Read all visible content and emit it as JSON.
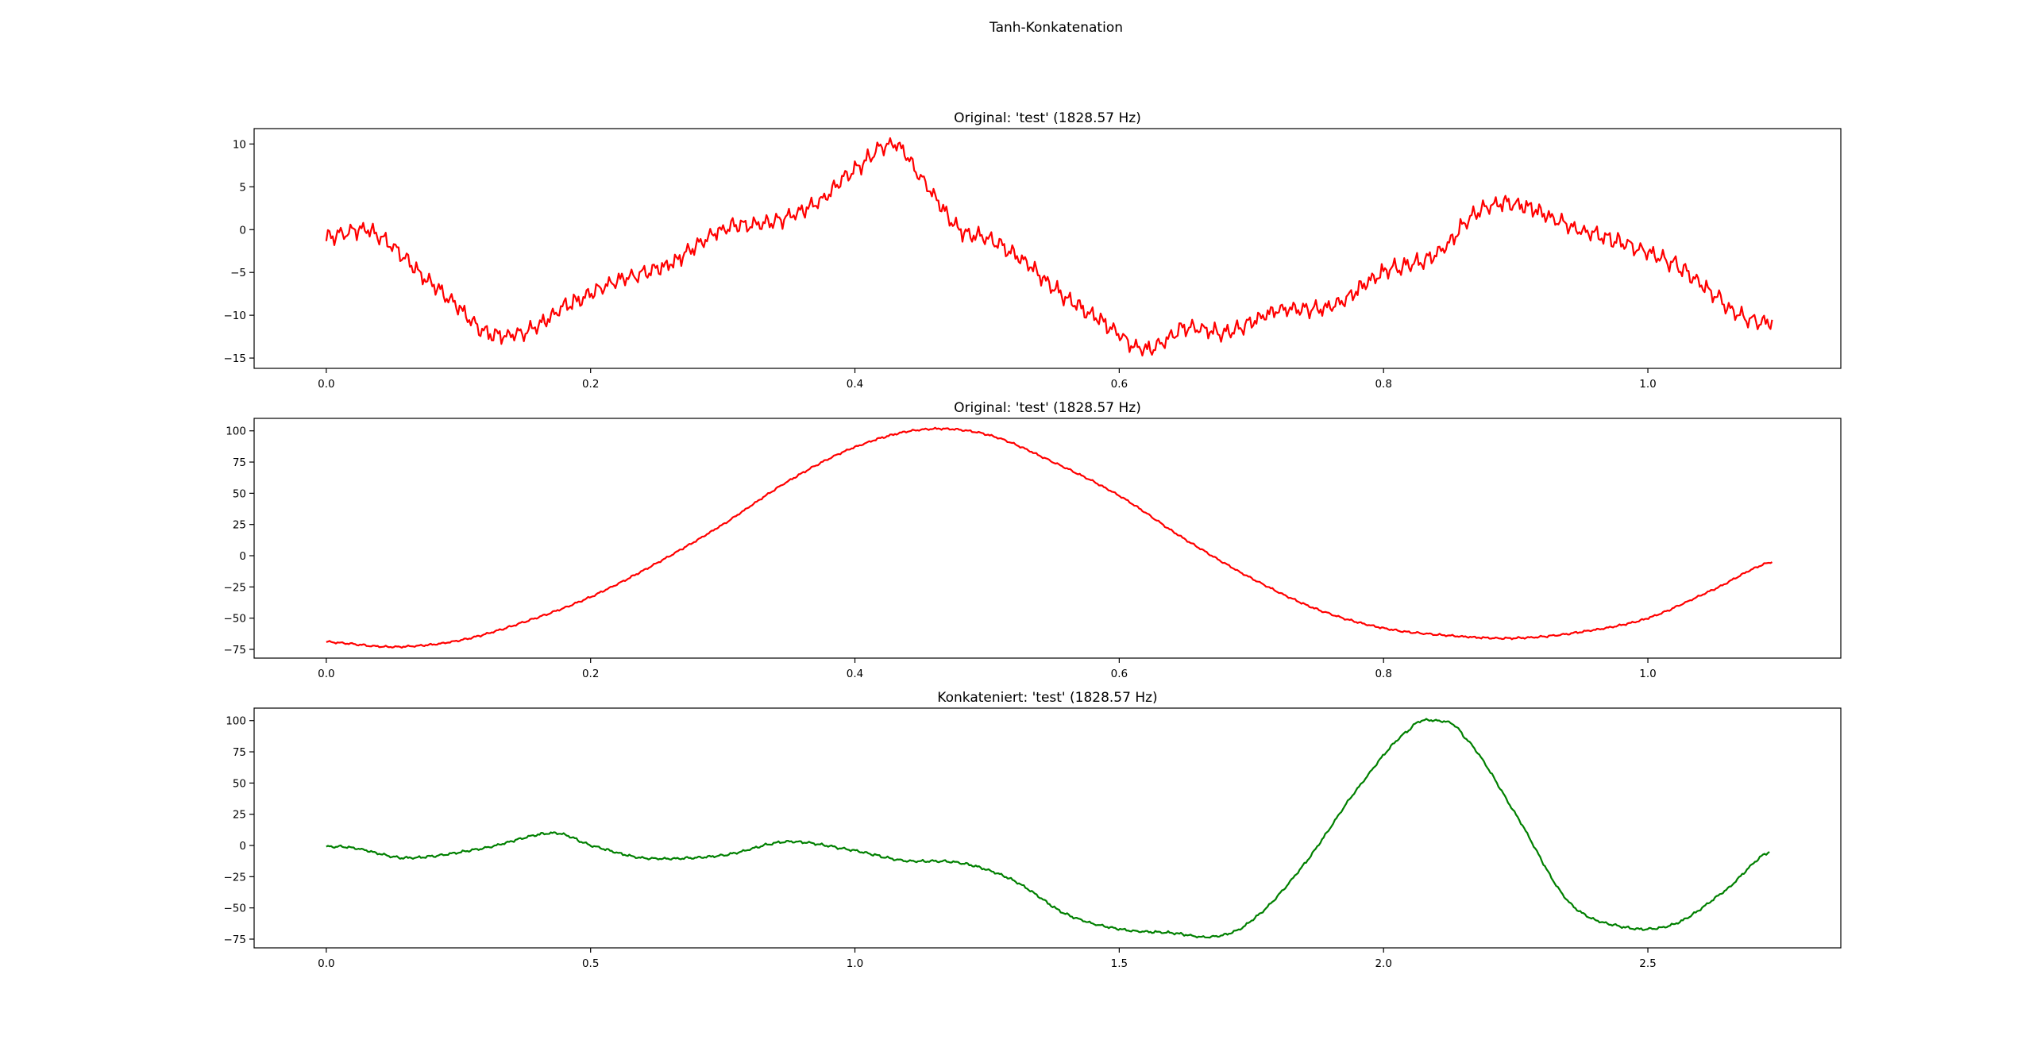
{
  "figure_title": "Tanh-Konkatenation",
  "chart_data": [
    {
      "type": "line",
      "title": "Original: 'test' (1828.57 Hz)",
      "xlabel": "",
      "ylabel": "",
      "xlim": [
        -0.0546,
        1.146
      ],
      "ylim": [
        -16.2,
        11.8
      ],
      "xticks": [
        0.0,
        0.2,
        0.4,
        0.6,
        0.8,
        1.0
      ],
      "xtick_labels": [
        "0.0",
        "0.2",
        "0.4",
        "0.6",
        "0.8",
        "1.0"
      ],
      "yticks": [
        10,
        5,
        0,
        -5,
        -10,
        -15
      ],
      "ytick_labels": [
        "10",
        "5",
        "0",
        "−5",
        "−10",
        "−15"
      ],
      "grid": false,
      "series": [
        {
          "color": "#ff0000",
          "noise": 1.0,
          "x": [
            0.0,
            0.03,
            0.05,
            0.07,
            0.1,
            0.12,
            0.15,
            0.18,
            0.22,
            0.26,
            0.3,
            0.34,
            0.37,
            0.4,
            0.43,
            0.45,
            0.48,
            0.5,
            0.53,
            0.56,
            0.59,
            0.62,
            0.65,
            0.68,
            0.72,
            0.76,
            0.8,
            0.84,
            0.87,
            0.9,
            0.94,
            0.98,
            1.02,
            1.05,
            1.07,
            1.094
          ],
          "y": [
            -1,
            0,
            -2,
            -5,
            -9,
            -12,
            -12,
            -9,
            -6,
            -4,
            0,
            1,
            3,
            7,
            10,
            6,
            0,
            -1,
            -4,
            -8,
            -11,
            -14,
            -11.5,
            -12,
            -9.5,
            -9,
            -5,
            -3,
            2,
            3,
            0.5,
            -1.5,
            -4,
            -7.5,
            -10,
            -11
          ]
        }
      ]
    },
    {
      "type": "line",
      "title": "Original: 'test' (1828.57 Hz)",
      "xlabel": "",
      "ylabel": "",
      "xlim": [
        -0.0546,
        1.146
      ],
      "ylim": [
        -82,
        110
      ],
      "xticks": [
        0.0,
        0.2,
        0.4,
        0.6,
        0.8,
        1.0
      ],
      "xtick_labels": [
        "0.0",
        "0.2",
        "0.4",
        "0.6",
        "0.8",
        "1.0"
      ],
      "yticks": [
        100,
        75,
        50,
        25,
        0,
        -25,
        -50,
        -75
      ],
      "ytick_labels": [
        "100",
        "75",
        "50",
        "25",
        "0",
        "−25",
        "−50",
        "−75"
      ],
      "grid": false,
      "series": [
        {
          "color": "#ff0000",
          "noise": 0.8,
          "x": [
            0.0,
            0.05,
            0.1,
            0.15,
            0.2,
            0.25,
            0.3,
            0.35,
            0.4,
            0.45,
            0.5,
            0.55,
            0.6,
            0.65,
            0.7,
            0.75,
            0.8,
            0.85,
            0.9,
            0.95,
            1.0,
            1.05,
            1.094
          ],
          "y": [
            -69,
            -73,
            -68,
            -53,
            -33,
            -6,
            25,
            60,
            87,
            101,
            97,
            75,
            48,
            13,
            -18,
            -43,
            -58,
            -64,
            -66,
            -61,
            -50,
            -27,
            -5
          ]
        }
      ]
    },
    {
      "type": "line",
      "title": "Konkateniert: 'test' (1828.57 Hz)",
      "xlabel": "",
      "ylabel": "",
      "xlim": [
        -0.1365,
        2.865
      ],
      "ylim": [
        -82,
        110
      ],
      "xticks": [
        0.0,
        0.5,
        1.0,
        1.5,
        2.0,
        2.5
      ],
      "xtick_labels": [
        "0.0",
        "0.5",
        "1.0",
        "1.5",
        "2.0",
        "2.5"
      ],
      "yticks": [
        100,
        75,
        50,
        25,
        0,
        -25,
        -50,
        -75
      ],
      "ytick_labels": [
        "100",
        "75",
        "50",
        "25",
        "0",
        "−25",
        "−50",
        "−75"
      ],
      "grid": false,
      "series": [
        {
          "color": "#008000",
          "noise": 1.0,
          "x": [
            0.0,
            0.05,
            0.15,
            0.3,
            0.43,
            0.5,
            0.6,
            0.75,
            0.87,
            1.0,
            1.09,
            1.2,
            1.3,
            1.4,
            1.5,
            1.6,
            1.68,
            1.75,
            1.85,
            1.95,
            2.05,
            2.1,
            2.15,
            2.25,
            2.35,
            2.45,
            2.55,
            2.65,
            2.73
          ],
          "y": [
            -1,
            -2,
            -10,
            -2,
            10,
            0,
            -10,
            -8,
            3,
            -4,
            -12,
            -14,
            -28,
            -55,
            -67,
            -70,
            -73,
            -60,
            -15,
            45,
            93,
            100,
            88,
            25,
            -45,
            -65,
            -63,
            -35,
            -5
          ]
        }
      ]
    }
  ]
}
